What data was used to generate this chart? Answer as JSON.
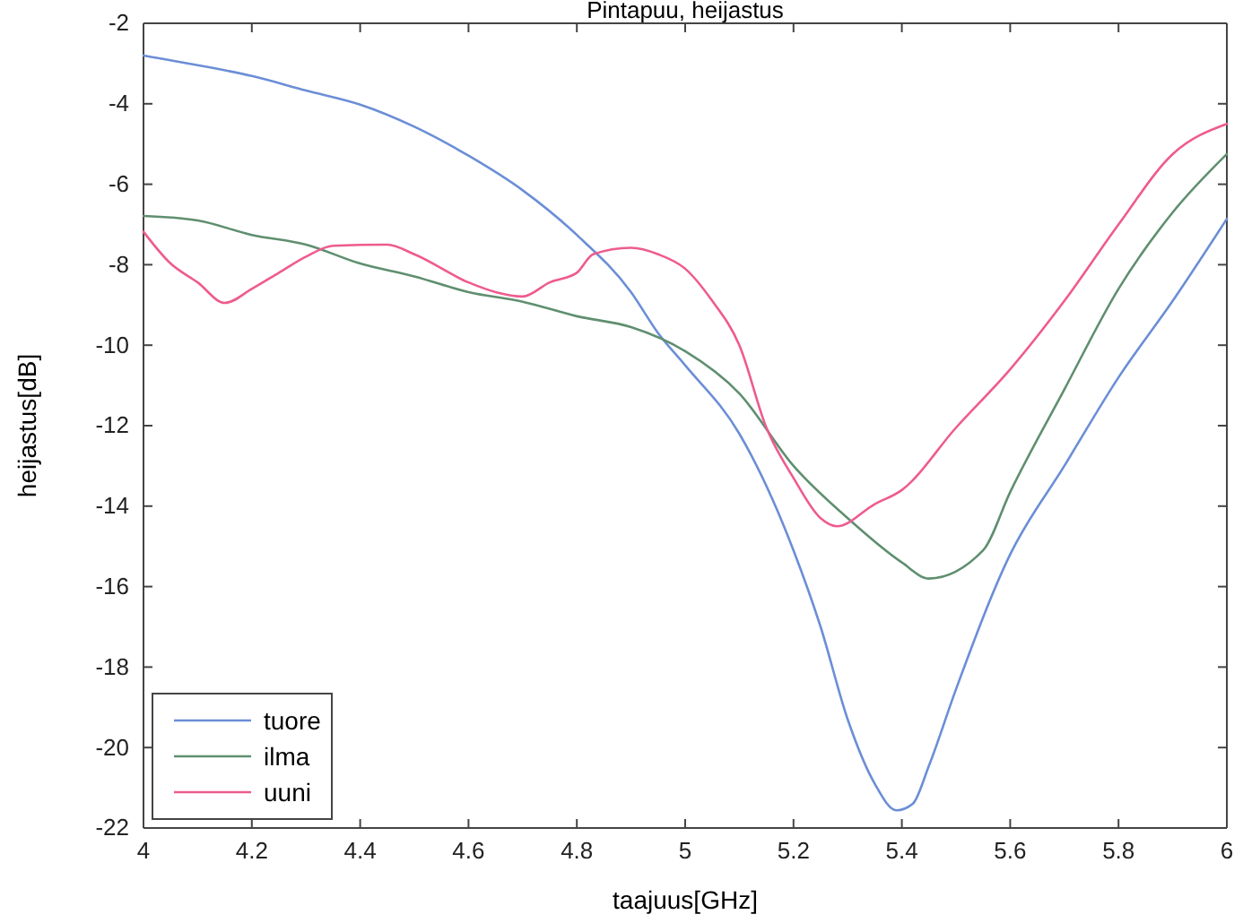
{
  "chart_data": {
    "type": "line",
    "title": "Pintapuu, heijastus",
    "xlabel": "taajuus[GHz]",
    "ylabel": "heijastus[dB]",
    "xlim": [
      4,
      6
    ],
    "xticks": [
      4,
      4.2,
      4.4,
      4.6,
      4.8,
      5,
      5.2,
      5.4,
      5.6,
      5.8,
      6
    ],
    "ylim": [
      -22,
      -2
    ],
    "yticks": [
      -22,
      -20,
      -18,
      -16,
      -14,
      -12,
      -10,
      -8,
      -6,
      -4,
      -2
    ],
    "grid": false,
    "legend": "bottom left",
    "line_style": "solid",
    "marker": "none",
    "series": [
      {
        "name": "tuore",
        "color": "#6b8ed6",
        "x": [
          4,
          4.1,
          4.2,
          4.3,
          4.4,
          4.5,
          4.6,
          4.7,
          4.8,
          4.9,
          4.95,
          5,
          5.1,
          5.2,
          5.25,
          5.3,
          5.35,
          5.39,
          5.42,
          5.45,
          5.5,
          5.6,
          5.7,
          5.8,
          5.9,
          6
        ],
        "values": [
          -2.8,
          -3.04,
          -3.31,
          -3.67,
          -4.02,
          -4.57,
          -5.29,
          -6.15,
          -7.26,
          -8.68,
          -9.7,
          -10.5,
          -12.2,
          -15.1,
          -17,
          -19.3,
          -20.9,
          -21.56,
          -21.4,
          -20.45,
          -18.55,
          -15.2,
          -13,
          -10.8,
          -8.9,
          -6.86
        ]
      },
      {
        "name": "ilma",
        "color": "#5f8f6f",
        "x": [
          4,
          4.1,
          4.2,
          4.3,
          4.4,
          4.5,
          4.6,
          4.7,
          4.8,
          4.9,
          5,
          5.1,
          5.2,
          5.3,
          5.4,
          5.45,
          5.55,
          5.6,
          5.7,
          5.8,
          5.9,
          6
        ],
        "values": [
          -6.79,
          -6.9,
          -7.26,
          -7.5,
          -7.97,
          -8.29,
          -8.68,
          -8.92,
          -9.28,
          -9.55,
          -10.15,
          -11.2,
          -13,
          -14.3,
          -15.4,
          -15.8,
          -15.1,
          -13.65,
          -11.1,
          -8.6,
          -6.7,
          -5.25
        ]
      },
      {
        "name": "uuni",
        "color": "#ee5b8f",
        "x": [
          4,
          4.05,
          4.1,
          4.15,
          4.2,
          4.25,
          4.3,
          4.35,
          4.45,
          4.5,
          4.6,
          4.65,
          4.7,
          4.75,
          4.8,
          4.83,
          4.9,
          4.95,
          5,
          5.05,
          5.1,
          5.15,
          5.2,
          5.25,
          5.28,
          5.35,
          5.4,
          5.5,
          5.6,
          5.7,
          5.8,
          5.9,
          6
        ],
        "values": [
          -7.18,
          -7.97,
          -8.44,
          -8.95,
          -8.6,
          -8.2,
          -7.8,
          -7.53,
          -7.5,
          -7.74,
          -8.44,
          -8.68,
          -8.79,
          -8.44,
          -8.2,
          -7.74,
          -7.58,
          -7.74,
          -8.1,
          -8.9,
          -10,
          -12.05,
          -13.3,
          -14.3,
          -14.5,
          -13.95,
          -13.6,
          -12.05,
          -10.6,
          -8.9,
          -7,
          -5.25,
          -4.5
        ]
      }
    ]
  }
}
